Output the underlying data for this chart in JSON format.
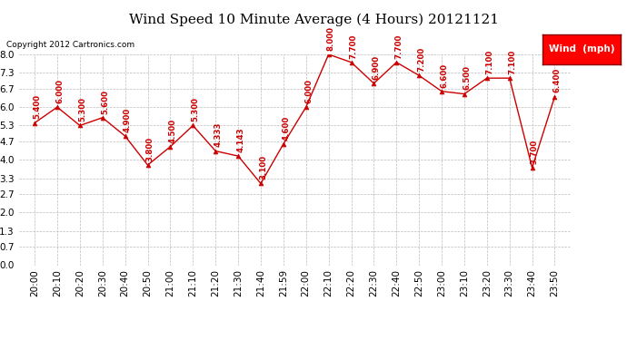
{
  "title": "Wind Speed 10 Minute Average (4 Hours) 20121121",
  "copyright": "Copyright 2012 Cartronics.com",
  "legend_label": "Wind  (mph)",
  "x_labels": [
    "20:00",
    "20:10",
    "20:20",
    "20:30",
    "20:40",
    "20:50",
    "21:00",
    "21:10",
    "21:20",
    "21:30",
    "21:40",
    "21:59",
    "22:00",
    "22:10",
    "22:20",
    "22:30",
    "22:40",
    "22:50",
    "23:00",
    "23:10",
    "23:20",
    "23:30",
    "23:40",
    "23:50"
  ],
  "y_values": [
    5.4,
    6.0,
    5.3,
    5.6,
    4.9,
    3.8,
    4.5,
    5.3,
    4.333,
    4.143,
    3.1,
    4.6,
    6.0,
    8.0,
    7.7,
    6.9,
    7.7,
    7.2,
    6.6,
    6.5,
    7.1,
    7.1,
    3.7,
    6.4
  ],
  "y_tick_vals": [
    0.0,
    0.7,
    1.3,
    2.0,
    2.7,
    3.3,
    4.0,
    4.7,
    5.3,
    6.0,
    6.7,
    7.3,
    8.0
  ],
  "data_labels": [
    "5.400",
    "6.000",
    "5.300",
    "5.600",
    "4.900",
    "3.800",
    "4.500",
    "5.300",
    "4.333",
    "4.143",
    "3.100",
    "4.600",
    "6.000",
    "8.000",
    "7.700",
    "6.900",
    "7.700",
    "7.200",
    "6.600",
    "6.500",
    "7.100",
    "7.100",
    "3.700",
    "6.400"
  ],
  "line_color": "#cc0000",
  "bg_color": "#ffffff",
  "grid_color": "#bbbbbb",
  "ylim": [
    0.0,
    8.0
  ],
  "title_fontsize": 11,
  "tick_fontsize": 7.5,
  "label_fontsize": 6.2
}
